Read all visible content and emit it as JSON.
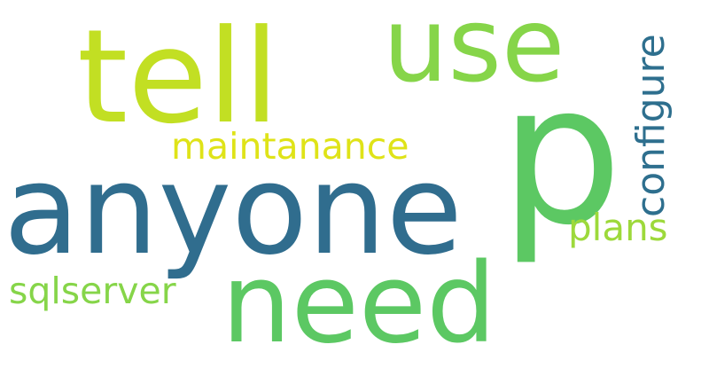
{
  "background": "#ffffff",
  "words": [
    {
      "id": "anyone",
      "text": "anyone",
      "color": "#306d8e"
    },
    {
      "id": "p",
      "text": "p",
      "color": "#5cc863"
    },
    {
      "id": "tell",
      "text": "tell",
      "color": "#c2df23"
    },
    {
      "id": "use",
      "text": "use",
      "color": "#86d549"
    },
    {
      "id": "need",
      "text": "need",
      "color": "#5cc863"
    },
    {
      "id": "configure",
      "text": "configure",
      "color": "#2e6f8e"
    },
    {
      "id": "maintanance",
      "text": "maintanance",
      "color": "#dfe318"
    },
    {
      "id": "plans",
      "text": "plans",
      "color": "#9dd93b"
    },
    {
      "id": "sqlserver",
      "text": "sqlserver",
      "color": "#86d549"
    }
  ]
}
